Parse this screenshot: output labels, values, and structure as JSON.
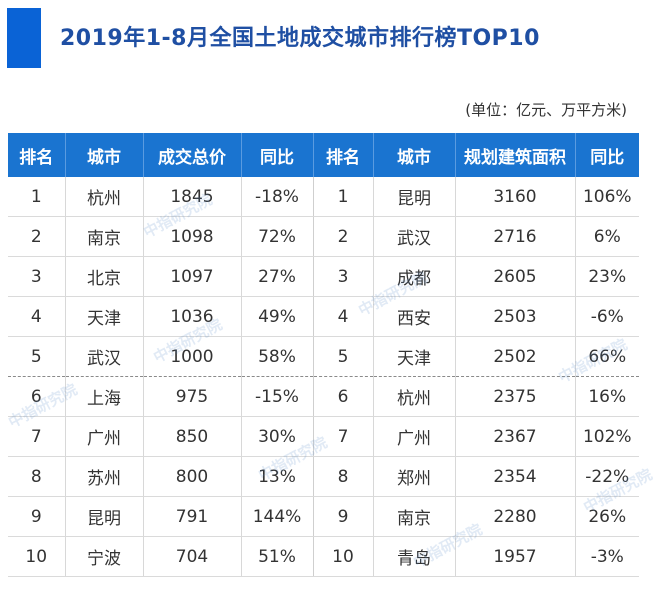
{
  "title": "2019年1-8月全国土地成交城市排行榜TOP10",
  "unit": "(单位：亿元、万平方米)",
  "watermark": "中指研究院",
  "colors": {
    "header_bg": "#1a74d0",
    "title": "#1f4fa3",
    "accent": "#0a63d6"
  },
  "headers": [
    "排名",
    "城市",
    "成交总价",
    "同比",
    "排名",
    "城市",
    "规划建筑面积",
    "同比"
  ],
  "rows": [
    [
      "1",
      "杭州",
      "1845",
      "-18%",
      "1",
      "昆明",
      "3160",
      "106%"
    ],
    [
      "2",
      "南京",
      "1098",
      "72%",
      "2",
      "武汉",
      "2716",
      "6%"
    ],
    [
      "3",
      "北京",
      "1097",
      "27%",
      "3",
      "成都",
      "2605",
      "23%"
    ],
    [
      "4",
      "天津",
      "1036",
      "49%",
      "4",
      "西安",
      "2503",
      "-6%"
    ],
    [
      "5",
      "武汉",
      "1000",
      "58%",
      "5",
      "天津",
      "2502",
      "66%"
    ],
    [
      "6",
      "上海",
      "975",
      "-15%",
      "6",
      "杭州",
      "2375",
      "16%"
    ],
    [
      "7",
      "广州",
      "850",
      "30%",
      "7",
      "广州",
      "2367",
      "102%"
    ],
    [
      "8",
      "苏州",
      "800",
      "13%",
      "8",
      "郑州",
      "2354",
      "-22%"
    ],
    [
      "9",
      "昆明",
      "791",
      "144%",
      "9",
      "南京",
      "2280",
      "26%"
    ],
    [
      "10",
      "宁波",
      "704",
      "51%",
      "10",
      "青岛",
      "1957",
      "-3%"
    ]
  ]
}
